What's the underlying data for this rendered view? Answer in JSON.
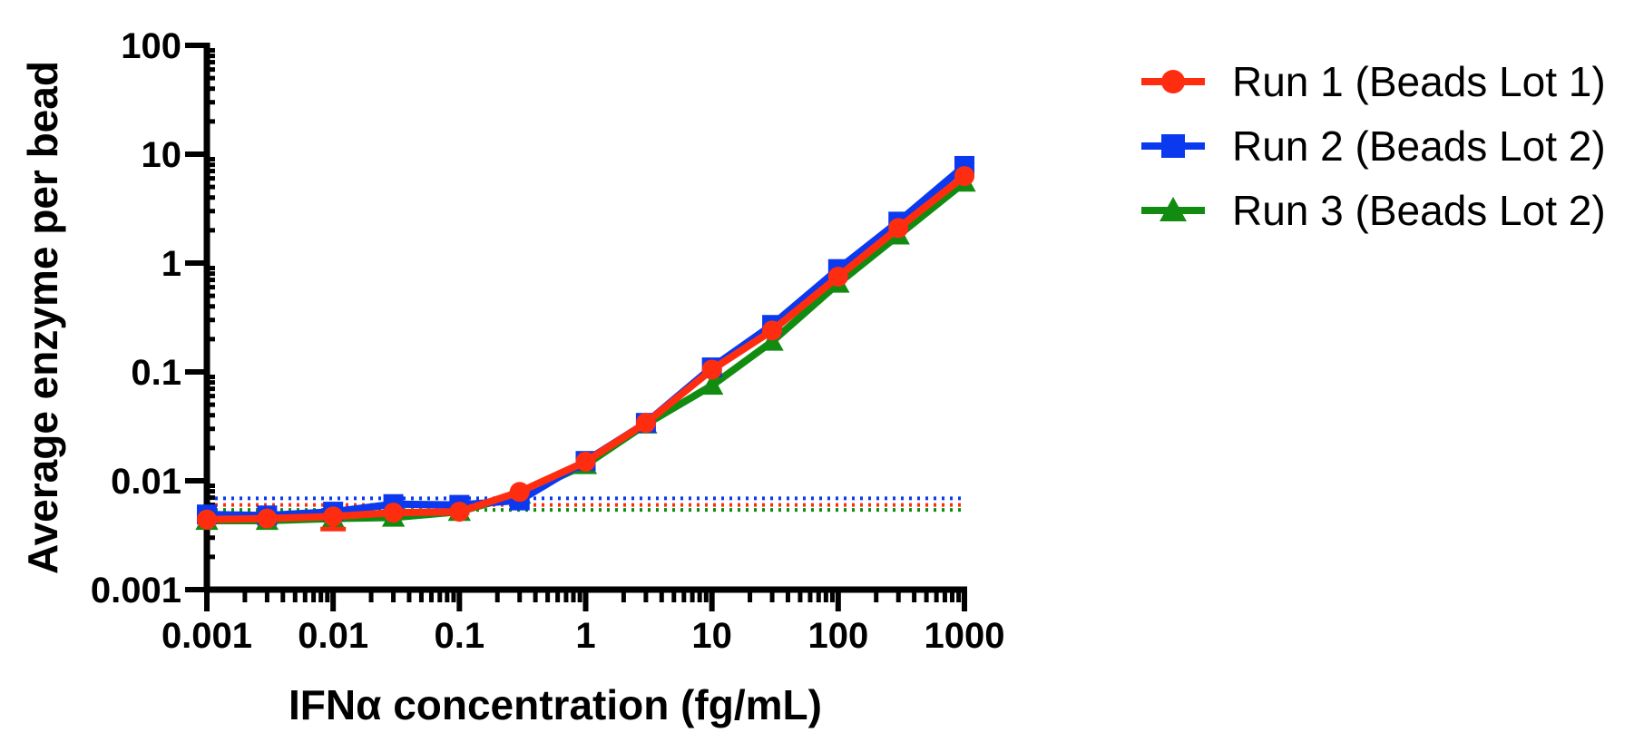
{
  "chart_data": {
    "type": "line",
    "title": "",
    "xlabel": "IFNα concentration (fg/mL)",
    "ylabel": "Average enzyme per bead",
    "xscale": "log",
    "yscale": "log",
    "xlim": [
      0.001,
      1000
    ],
    "ylim": [
      0.001,
      100
    ],
    "xticks": [
      {
        "value": 0.001,
        "label": "0.001"
      },
      {
        "value": 0.01,
        "label": "0.01"
      },
      {
        "value": 0.1,
        "label": "0.1"
      },
      {
        "value": 1,
        "label": "1"
      },
      {
        "value": 10,
        "label": "10"
      },
      {
        "value": 100,
        "label": "100"
      },
      {
        "value": 1000,
        "label": "1000"
      }
    ],
    "yticks": [
      {
        "value": 0.001,
        "label": "0.001"
      },
      {
        "value": 0.01,
        "label": "0.01"
      },
      {
        "value": 0.1,
        "label": "0.1"
      },
      {
        "value": 1,
        "label": "1"
      },
      {
        "value": 10,
        "label": "10"
      },
      {
        "value": 100,
        "label": "100"
      }
    ],
    "legend_position": "top-right",
    "grid": false,
    "series": [
      {
        "name": "Run 1 (Beads Lot 1)",
        "color": "#ff2d10",
        "marker": "circle",
        "x": [
          0.001,
          0.003,
          0.01,
          0.03,
          0.1,
          0.3,
          1,
          3,
          10,
          30,
          100,
          300,
          1000
        ],
        "y": [
          0.0044,
          0.0045,
          0.0047,
          0.0051,
          0.0052,
          0.0079,
          0.015,
          0.034,
          0.105,
          0.24,
          0.75,
          2.1,
          6.3
        ],
        "error_low": [
          0,
          0,
          0.0036,
          0,
          0,
          0,
          0,
          0,
          0,
          0,
          0,
          0,
          0
        ],
        "lod": 0.006
      },
      {
        "name": "Run 2 (Beads Lot 2)",
        "color": "#0a39f0",
        "marker": "square",
        "x": [
          0.001,
          0.003,
          0.01,
          0.03,
          0.1,
          0.3,
          1,
          3,
          10,
          30,
          100,
          300,
          1000
        ],
        "y": [
          0.0049,
          0.0048,
          0.0052,
          0.0061,
          0.006,
          0.0066,
          0.0152,
          0.034,
          0.11,
          0.27,
          0.88,
          2.4,
          7.8
        ],
        "lod": 0.0069
      },
      {
        "name": "Run 3 (Beads Lot 2)",
        "color": "#118c11",
        "marker": "triangle",
        "x": [
          0.001,
          0.003,
          0.01,
          0.03,
          0.1,
          0.3,
          1,
          3,
          10,
          30,
          100,
          300,
          1000
        ],
        "y": [
          0.0043,
          0.0043,
          0.0045,
          0.0046,
          0.0052,
          0.0075,
          0.014,
          0.033,
          0.075,
          0.19,
          0.65,
          1.8,
          5.5
        ],
        "lod": 0.0054
      }
    ]
  }
}
